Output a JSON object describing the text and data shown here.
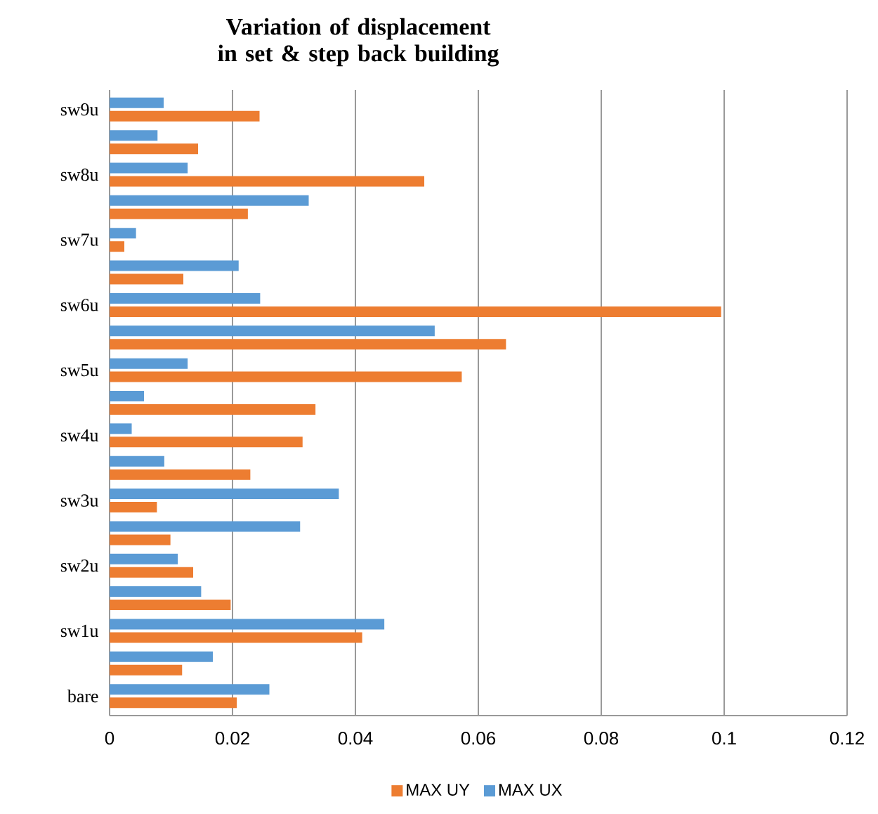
{
  "chart_data": {
    "type": "bar",
    "orientation": "horizontal",
    "title": "Variation of displacement in  set & step back building",
    "categories": [
      "sw9u",
      null,
      "sw8u",
      null,
      "sw7u",
      null,
      "sw6u",
      null,
      "sw5u",
      null,
      "sw4u",
      null,
      "sw3u",
      null,
      "sw2u",
      null,
      "sw1u",
      null,
      "bare"
    ],
    "series": [
      {
        "name": "MAX UY",
        "color": "#ed7d31",
        "values": [
          0.0244,
          0.0144,
          0.0512,
          0.0225,
          0.0024,
          0.012,
          0.0995,
          0.0645,
          0.0573,
          0.0335,
          0.0314,
          0.0229,
          0.0077,
          0.0099,
          0.0136,
          0.0197,
          0.0411,
          0.0118,
          0.0207
        ]
      },
      {
        "name": "MAX UX",
        "color": "#5b9bd5",
        "values": [
          0.0088,
          0.0078,
          0.0127,
          0.0324,
          0.0043,
          0.021,
          0.0245,
          0.0529,
          0.0127,
          0.0056,
          0.0036,
          0.0089,
          0.0373,
          0.031,
          0.0111,
          0.0149,
          0.0447,
          0.0168,
          0.026
        ]
      }
    ],
    "xlim": [
      0,
      0.12
    ],
    "xticks": [
      0,
      0.02,
      0.04,
      0.06,
      0.08,
      0.1,
      0.12
    ],
    "grid": "x",
    "legend": "bottom"
  }
}
